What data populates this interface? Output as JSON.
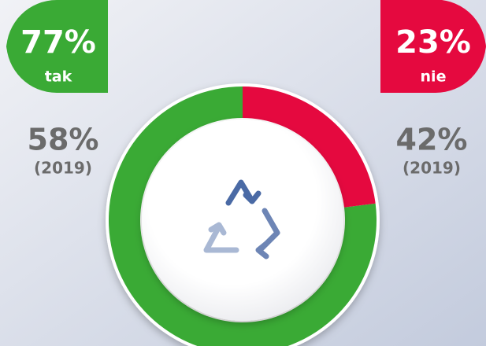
{
  "chart_data": {
    "type": "pie",
    "donut": true,
    "categories": [
      "tak",
      "nie"
    ],
    "values": [
      77,
      23
    ],
    "value_labels": [
      "77%",
      "23%"
    ],
    "colors": [
      "#3aaa35",
      "#e5093f"
    ],
    "comparison": {
      "label": "(2019)",
      "values": [
        58,
        42
      ],
      "value_labels": [
        "58%",
        "42%"
      ]
    }
  }
}
